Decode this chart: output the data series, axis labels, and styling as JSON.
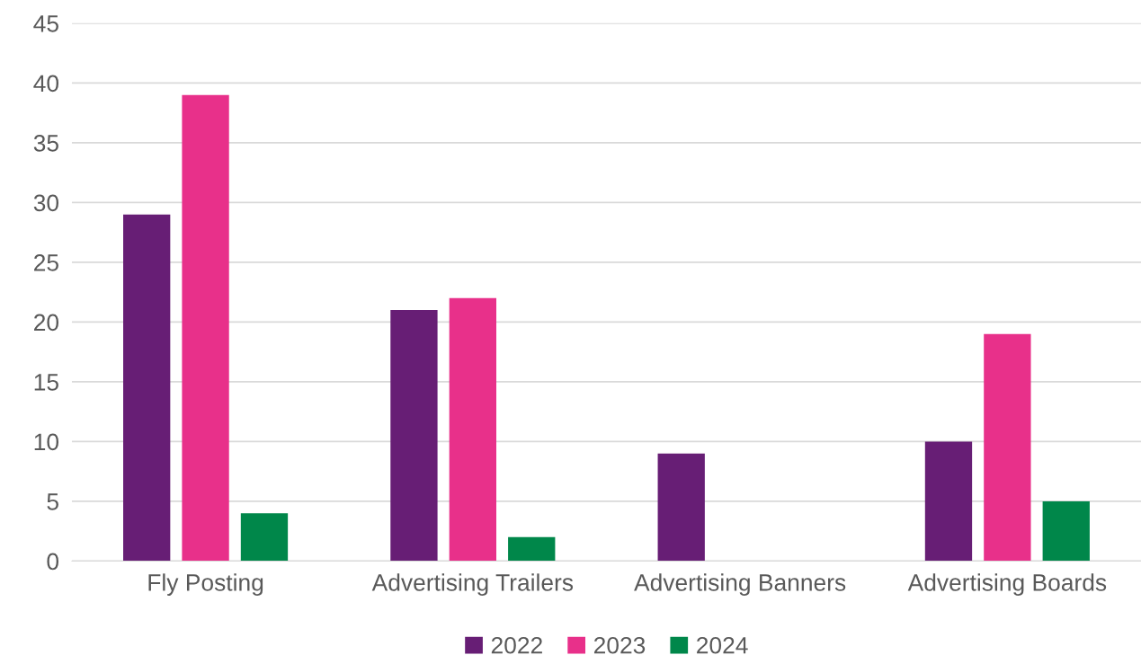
{
  "chart_data": {
    "type": "bar",
    "categories": [
      "Fly Posting",
      "Advertising Trailers",
      "Advertising Banners",
      "Advertising Boards"
    ],
    "series": [
      {
        "name": "2022",
        "color": "#671e75",
        "values": [
          29,
          21,
          9,
          10
        ]
      },
      {
        "name": "2023",
        "color": "#e8308a",
        "values": [
          39,
          22,
          null,
          19
        ]
      },
      {
        "name": "2024",
        "color": "#00874a",
        "values": [
          4,
          2,
          null,
          5
        ]
      }
    ],
    "ylim": [
      0,
      45
    ],
    "yticks": [
      0,
      5,
      10,
      15,
      20,
      25,
      30,
      35,
      40,
      45
    ],
    "grid": "y",
    "legend": "bottom"
  }
}
